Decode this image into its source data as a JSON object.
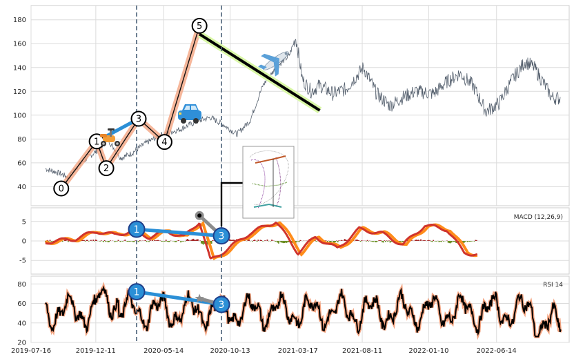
{
  "chart_data": [
    {
      "type": "line",
      "panel": "price",
      "y_ticks": [
        40,
        60,
        80,
        100,
        120,
        140,
        160,
        180
      ],
      "ylim": [
        24,
        192
      ],
      "x_tick_labels": [
        "2019-07-16",
        "2019-12-11",
        "2020-05-14",
        "2020-10-13",
        "2021-03-17",
        "2021-08-11",
        "2022-01-10",
        "2022-06-14"
      ],
      "x_tick_days": [
        0,
        148,
        303,
        455,
        610,
        757,
        909,
        1064
      ],
      "xlim_days": [
        0,
        1230
      ],
      "series": [
        {
          "values": [
            {
              "d": 33,
              "v": 55
            },
            {
              "d": 60,
              "v": 52
            },
            {
              "d": 85,
              "v": 48
            },
            {
              "d": 100,
              "v": 55
            },
            {
              "d": 125,
              "v": 63
            },
            {
              "d": 150,
              "v": 70
            },
            {
              "d": 175,
              "v": 80
            },
            {
              "d": 190,
              "v": 72
            },
            {
              "d": 205,
              "v": 64
            },
            {
              "d": 230,
              "v": 68
            },
            {
              "d": 260,
              "v": 76
            },
            {
              "d": 300,
              "v": 84
            },
            {
              "d": 340,
              "v": 88
            },
            {
              "d": 380,
              "v": 95
            },
            {
              "d": 410,
              "v": 98
            },
            {
              "d": 440,
              "v": 92
            },
            {
              "d": 470,
              "v": 84
            },
            {
              "d": 500,
              "v": 95
            },
            {
              "d": 530,
              "v": 125
            },
            {
              "d": 560,
              "v": 140
            },
            {
              "d": 590,
              "v": 150
            },
            {
              "d": 605,
              "v": 165
            },
            {
              "d": 612,
              "v": 150
            },
            {
              "d": 620,
              "v": 130
            },
            {
              "d": 640,
              "v": 120
            },
            {
              "d": 660,
              "v": 125
            },
            {
              "d": 690,
              "v": 118
            },
            {
              "d": 720,
              "v": 122
            },
            {
              "d": 760,
              "v": 140
            },
            {
              "d": 790,
              "v": 118
            },
            {
              "d": 820,
              "v": 108
            },
            {
              "d": 850,
              "v": 115
            },
            {
              "d": 880,
              "v": 120
            },
            {
              "d": 920,
              "v": 118
            },
            {
              "d": 950,
              "v": 128
            },
            {
              "d": 980,
              "v": 135
            },
            {
              "d": 1010,
              "v": 125
            },
            {
              "d": 1040,
              "v": 103
            },
            {
              "d": 1070,
              "v": 110
            },
            {
              "d": 1100,
              "v": 130
            },
            {
              "d": 1130,
              "v": 145
            },
            {
              "d": 1150,
              "v": 140
            },
            {
              "d": 1170,
              "v": 128
            },
            {
              "d": 1190,
              "v": 115
            },
            {
              "d": 1210,
              "v": 114
            }
          ]
        }
      ],
      "wave_points": [
        {
          "label": "0",
          "d": 69,
          "v": 38.5
        },
        {
          "label": "1",
          "d": 150,
          "v": 78
        },
        {
          "label": "2",
          "d": 172,
          "v": 55.5
        },
        {
          "label": "3",
          "d": 246,
          "v": 97
        },
        {
          "label": "4",
          "d": 305,
          "v": 77.5
        },
        {
          "label": "5",
          "d": 385,
          "v": 175
        }
      ],
      "trend_line": {
        "start": {
          "d": 385,
          "v": 168
        },
        "end": {
          "d": 660,
          "v": 104
        }
      }
    },
    {
      "type": "line",
      "panel": "macd",
      "title": "MACD (12,26,9)",
      "y_ticks": [
        -5,
        0,
        5
      ],
      "ylim": [
        -8.5,
        8.5
      ],
      "series": [
        {
          "name": "",
          "values": [
            {
              "d": 33,
              "v": -0.3
            },
            {
              "d": 100,
              "v": 0.5
            },
            {
              "d": 150,
              "v": 2.5
            },
            {
              "d": 190,
              "v": 1.5
            },
            {
              "d": 230,
              "v": 2.5
            },
            {
              "d": 270,
              "v": 1
            },
            {
              "d": 310,
              "v": 2.5
            },
            {
              "d": 350,
              "v": 1
            },
            {
              "d": 385,
              "v": 5
            },
            {
              "d": 410,
              "v": -5
            },
            {
              "d": 450,
              "v": -2
            },
            {
              "d": 500,
              "v": 2
            },
            {
              "d": 560,
              "v": 5
            },
            {
              "d": 610,
              "v": -3
            },
            {
              "d": 650,
              "v": 1
            },
            {
              "d": 700,
              "v": -2
            },
            {
              "d": 750,
              "v": 3
            },
            {
              "d": 800,
              "v": 2
            },
            {
              "d": 850,
              "v": -1
            },
            {
              "d": 900,
              "v": 4
            },
            {
              "d": 950,
              "v": 3
            },
            {
              "d": 990,
              "v": -3
            },
            {
              "d": 1020,
              "v": -3.5
            }
          ]
        }
      ],
      "annotation": {
        "label_a": "1",
        "label_b": "3"
      }
    },
    {
      "type": "line",
      "panel": "rsi",
      "title": "RSI 14",
      "y_ticks": [
        20,
        40,
        60,
        80
      ],
      "ylim": [
        20,
        88
      ],
      "annotation": {
        "label_a": "1",
        "label_b": "3"
      }
    }
  ],
  "x_axis": {
    "labels": [
      "2019-07-16",
      "2019-12-11",
      "2020-05-14",
      "2020-10-13",
      "2021-03-17",
      "2021-08-11",
      "2022-01-10",
      "2022-06-14"
    ]
  },
  "panels": {
    "macd_title": "MACD (12,26,9)",
    "rsi_title": "RSI 14"
  },
  "icons": [
    "scooter-icon",
    "car-icon",
    "airplane-icon"
  ]
}
